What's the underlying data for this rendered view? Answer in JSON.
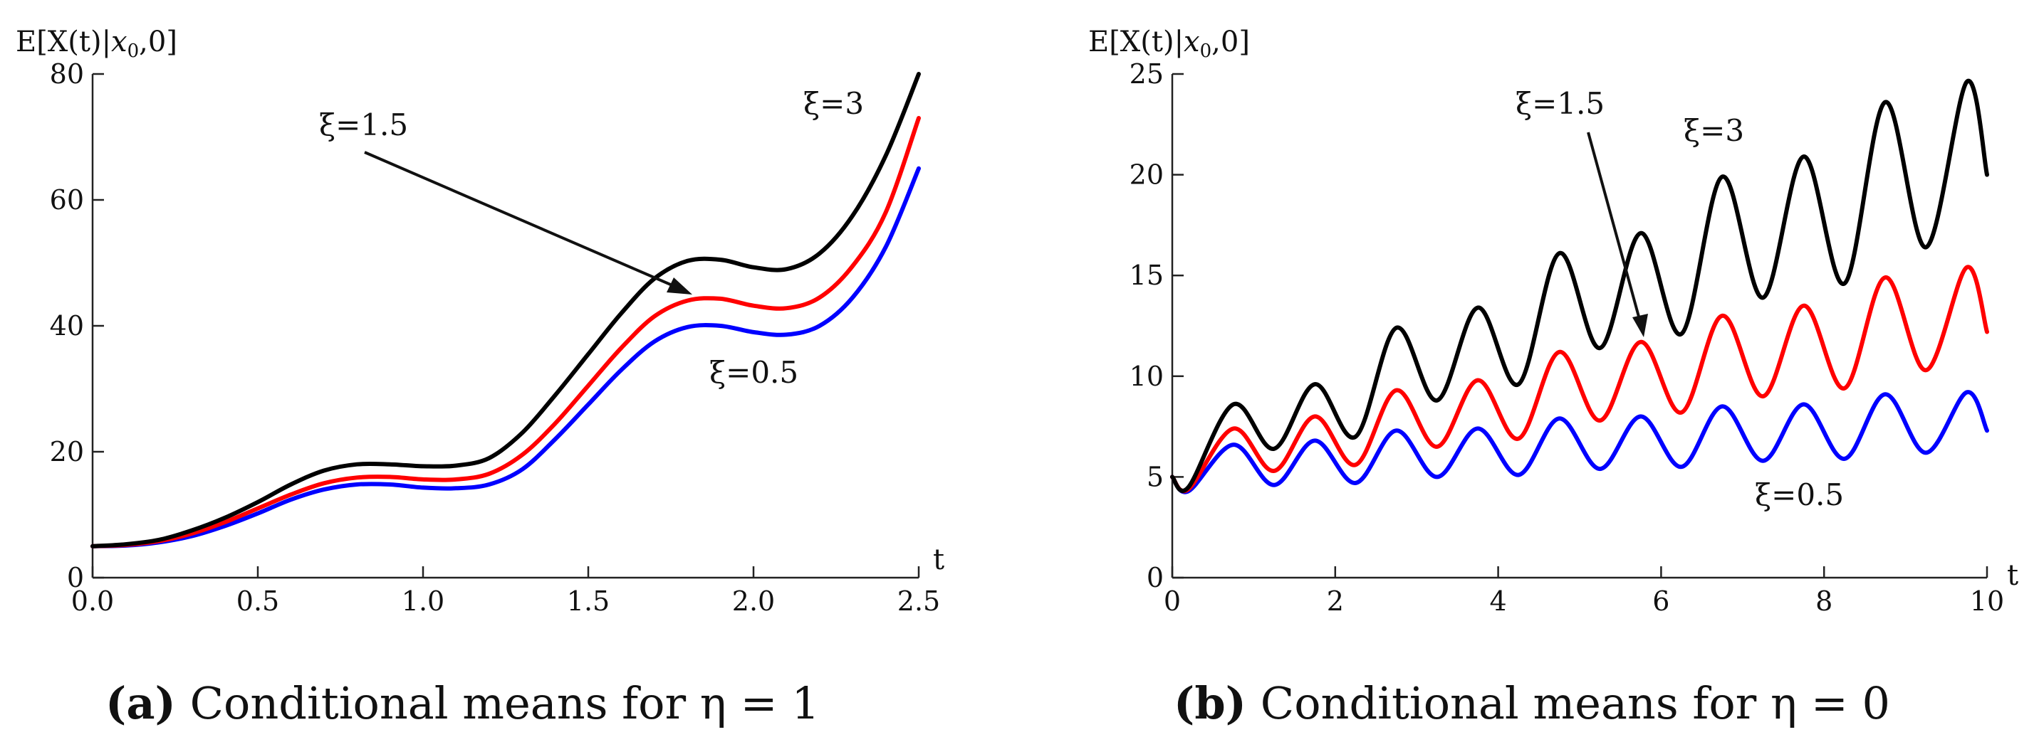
{
  "chart_data": [
    {
      "type": "line",
      "panel_label": "a",
      "caption": "Conditional means for η = 1",
      "caption_label_text": "(a)",
      "caption_text": "Conditional means for η = 1",
      "ylabel": "E[X(t)|x0,0]",
      "ylabel_parts": {
        "pre": "E[X(t)|",
        "var": "x",
        "sub": "0",
        "post": ",0]"
      },
      "xlabel": "t",
      "xlim": [
        0,
        2.5
      ],
      "ylim": [
        0,
        80
      ],
      "xticks": [
        0.0,
        0.5,
        1.0,
        1.5,
        2.0,
        2.5
      ],
      "xtick_labels": [
        "0.0",
        "0.5",
        "1.0",
        "1.5",
        "2.0",
        "2.5"
      ],
      "yticks": [
        0,
        20,
        40,
        60,
        80
      ],
      "ytick_labels": [
        "0",
        "20",
        "40",
        "60",
        "80"
      ],
      "annotations": [
        {
          "text": "ξ=1.5",
          "arrow_to": [
            1.83,
            44
          ]
        },
        {
          "text": "ξ=3"
        },
        {
          "text": "ξ=0.5"
        }
      ],
      "series": [
        {
          "name": "ξ=3",
          "color": "#000000",
          "x": [
            0,
            0.1,
            0.2,
            0.3,
            0.4,
            0.5,
            0.6,
            0.7,
            0.8,
            0.9,
            1.0,
            1.1,
            1.2,
            1.3,
            1.4,
            1.5,
            1.6,
            1.7,
            1.8,
            1.9,
            2.0,
            2.1,
            2.2,
            2.3,
            2.4,
            2.5
          ],
          "y": [
            5.0,
            5.3,
            6.0,
            7.5,
            9.5,
            12.0,
            14.8,
            17.0,
            18.0,
            18.0,
            17.7,
            17.8,
            19.0,
            23.0,
            29.0,
            35.5,
            42.0,
            47.5,
            50.3,
            50.5,
            49.3,
            49.0,
            51.5,
            57.5,
            67.0,
            80.0
          ]
        },
        {
          "name": "ξ=1.5",
          "color": "#ff0000",
          "x": [
            0,
            0.1,
            0.2,
            0.3,
            0.4,
            0.5,
            0.6,
            0.7,
            0.8,
            0.9,
            1.0,
            1.1,
            1.2,
            1.3,
            1.4,
            1.5,
            1.6,
            1.7,
            1.8,
            1.9,
            2.0,
            2.1,
            2.2,
            2.3,
            2.4,
            2.5
          ],
          "y": [
            5.0,
            5.2,
            5.8,
            7.0,
            8.8,
            11.0,
            13.2,
            15.0,
            15.9,
            16.0,
            15.6,
            15.6,
            16.5,
            19.5,
            24.5,
            30.5,
            36.5,
            41.5,
            44.0,
            44.3,
            43.2,
            42.8,
            44.5,
            49.5,
            58.0,
            73.0
          ]
        },
        {
          "name": "ξ=0.5",
          "color": "#0000ff",
          "x": [
            0,
            0.1,
            0.2,
            0.3,
            0.4,
            0.5,
            0.6,
            0.7,
            0.8,
            0.9,
            1.0,
            1.1,
            1.2,
            1.3,
            1.4,
            1.5,
            1.6,
            1.7,
            1.8,
            1.9,
            2.0,
            2.1,
            2.2,
            2.3,
            2.4,
            2.5
          ],
          "y": [
            5.0,
            5.1,
            5.6,
            6.6,
            8.2,
            10.2,
            12.4,
            14.0,
            14.8,
            14.8,
            14.3,
            14.2,
            14.8,
            17.2,
            22.0,
            27.5,
            33.0,
            37.5,
            39.8,
            40.0,
            39.0,
            38.6,
            40.0,
            44.5,
            52.5,
            65.0
          ]
        }
      ]
    },
    {
      "type": "line",
      "panel_label": "b",
      "caption": "Conditional means for η = 0",
      "caption_label_text": "(b)",
      "caption_text": "Conditional means for η = 0",
      "ylabel": "E[X(t)|x0,0]",
      "ylabel_parts": {
        "pre": "E[X(t)|",
        "var": "x",
        "sub": "0",
        "post": ",0]"
      },
      "xlabel": "t",
      "xlim": [
        0,
        10
      ],
      "ylim": [
        0,
        25
      ],
      "xticks": [
        0,
        2,
        4,
        6,
        8,
        10
      ],
      "xtick_labels": [
        "0",
        "2",
        "4",
        "6",
        "8",
        "10"
      ],
      "yticks": [
        0,
        5,
        10,
        15,
        20,
        25
      ],
      "ytick_labels": [
        "0",
        "5",
        "10",
        "15",
        "20",
        "25"
      ],
      "annotations": [
        {
          "text": "ξ=1.5",
          "arrow_to": [
            5.75,
            11.8
          ]
        },
        {
          "text": "ξ=3"
        },
        {
          "text": "ξ=0.5"
        }
      ],
      "series": [
        {
          "name": "ξ=3",
          "color": "#000000",
          "x": [
            0,
            0.2,
            0.75,
            1.25,
            1.75,
            2.25,
            2.75,
            3.25,
            3.75,
            4.25,
            4.75,
            5.25,
            5.75,
            6.25,
            6.75,
            7.25,
            7.75,
            8.25,
            8.75,
            9.25,
            9.75,
            10.0
          ],
          "y": [
            5.0,
            4.5,
            8.6,
            6.4,
            9.6,
            7.0,
            12.4,
            8.8,
            13.4,
            9.6,
            16.1,
            11.4,
            17.1,
            12.1,
            19.9,
            13.9,
            20.9,
            14.6,
            23.6,
            16.4,
            24.6,
            20.0
          ]
        },
        {
          "name": "ξ=1.5",
          "color": "#ff0000",
          "x": [
            0,
            0.2,
            0.75,
            1.25,
            1.75,
            2.25,
            2.75,
            3.25,
            3.75,
            4.25,
            4.75,
            5.25,
            5.75,
            6.25,
            6.75,
            7.25,
            7.75,
            8.25,
            8.75,
            9.25,
            9.75,
            10.0
          ],
          "y": [
            5.0,
            4.4,
            7.4,
            5.3,
            8.0,
            5.6,
            9.3,
            6.5,
            9.8,
            6.9,
            11.2,
            7.8,
            11.7,
            8.2,
            13.0,
            9.0,
            13.5,
            9.4,
            14.9,
            10.3,
            15.4,
            12.2
          ]
        },
        {
          "name": "ξ=0.5",
          "color": "#0000ff",
          "x": [
            0,
            0.2,
            0.75,
            1.25,
            1.75,
            2.25,
            2.75,
            3.25,
            3.75,
            4.25,
            4.75,
            5.25,
            5.75,
            6.25,
            6.75,
            7.25,
            7.75,
            8.25,
            8.75,
            9.25,
            9.75,
            10.0
          ],
          "y": [
            5.0,
            4.3,
            6.6,
            4.6,
            6.8,
            4.7,
            7.3,
            5.0,
            7.4,
            5.1,
            7.9,
            5.4,
            8.0,
            5.5,
            8.5,
            5.8,
            8.6,
            5.9,
            9.1,
            6.2,
            9.2,
            7.3
          ]
        }
      ]
    }
  ]
}
